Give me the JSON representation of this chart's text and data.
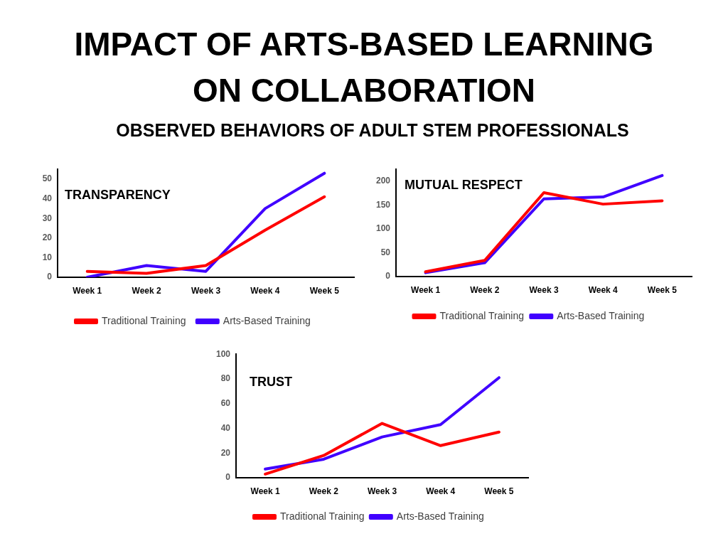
{
  "chart_data": [
    {
      "type": "other",
      "title": "IMPACT OF ARTS-BASED LEARNING ON COLLABORATION",
      "subtitle": "OBSERVED BEHAVIORS OF ADULT STEM PROFESSIONALS"
    },
    {
      "type": "line",
      "title": "TRANSPARENCY",
      "categories": [
        "Week 1",
        "Week 2",
        "Week 3",
        "Week 4",
        "Week 5"
      ],
      "series": [
        {
          "name": "Traditional Training",
          "color": "#ff0000",
          "values": [
            3,
            2,
            6,
            24,
            41
          ]
        },
        {
          "name": "Arts-Based Training",
          "color": "#4000ff",
          "values": [
            0,
            6,
            3,
            35,
            53
          ]
        }
      ],
      "ylim": [
        0,
        55
      ],
      "yticks": [
        0,
        10,
        20,
        30,
        40,
        50
      ],
      "legend": "bottom"
    },
    {
      "type": "line",
      "title": "MUTUAL RESPECT",
      "categories": [
        "Week 1",
        "Week 2",
        "Week 3",
        "Week 4",
        "Week 5"
      ],
      "series": [
        {
          "name": "Traditional Training",
          "color": "#ff0000",
          "values": [
            10,
            34,
            176,
            152,
            159
          ]
        },
        {
          "name": "Arts-Based Training",
          "color": "#4000ff",
          "values": [
            8,
            29,
            163,
            167,
            212
          ]
        }
      ],
      "ylim": [
        0,
        225
      ],
      "yticks": [
        0,
        50,
        100,
        150,
        200
      ],
      "legend": "bottom"
    },
    {
      "type": "line",
      "title": "TRUST",
      "categories": [
        "Week 1",
        "Week 2",
        "Week 3",
        "Week 4",
        "Week 5"
      ],
      "series": [
        {
          "name": "Traditional Training",
          "color": "#ff0000",
          "values": [
            3,
            18,
            44,
            26,
            37
          ]
        },
        {
          "name": "Arts-Based Training",
          "color": "#4000ff",
          "values": [
            7,
            15,
            33,
            43,
            81
          ]
        }
      ],
      "ylim": [
        0,
        100
      ],
      "yticks": [
        0,
        20,
        40,
        60,
        80,
        100
      ],
      "legend": "bottom"
    }
  ]
}
